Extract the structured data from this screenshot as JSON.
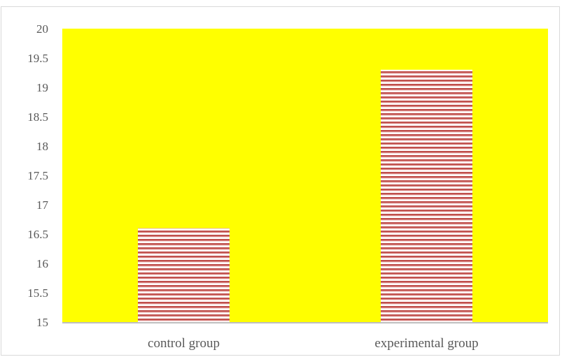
{
  "chart_data": {
    "type": "bar",
    "categories": [
      "control group",
      "experimental group"
    ],
    "values": [
      16.6,
      19.3
    ],
    "ylim": [
      15,
      20
    ],
    "yticks": [
      "15",
      "15.5",
      "16",
      "16.5",
      "17",
      "17.5",
      "18",
      "18.5",
      "19",
      "19.5",
      "20"
    ],
    "title": "",
    "xlabel": "",
    "ylabel": "",
    "grid": false,
    "legend": "none",
    "colors": {
      "plot_background": "#ffff00",
      "bar_stripe_dark": "#c0504d",
      "bar_stripe_light": "#ffffff",
      "axis_line": "#bfbfbf",
      "text": "#595959"
    }
  }
}
